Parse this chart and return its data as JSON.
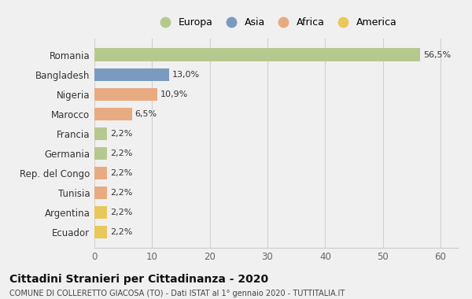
{
  "categories": [
    "Romania",
    "Bangladesh",
    "Nigeria",
    "Marocco",
    "Francia",
    "Germania",
    "Rep. del Congo",
    "Tunisia",
    "Argentina",
    "Ecuador"
  ],
  "values": [
    56.5,
    13.0,
    10.9,
    6.5,
    2.2,
    2.2,
    2.2,
    2.2,
    2.2,
    2.2
  ],
  "labels": [
    "56,5%",
    "13,0%",
    "10,9%",
    "6,5%",
    "2,2%",
    "2,2%",
    "2,2%",
    "2,2%",
    "2,2%",
    "2,2%"
  ],
  "colors": [
    "#b5c98e",
    "#7a9abf",
    "#e8aa80",
    "#e8aa80",
    "#b5c98e",
    "#b5c98e",
    "#e8aa80",
    "#e8aa80",
    "#e8c85a",
    "#e8c85a"
  ],
  "legend_labels": [
    "Europa",
    "Asia",
    "Africa",
    "America"
  ],
  "legend_colors": [
    "#b5c98e",
    "#7a9abf",
    "#e8aa80",
    "#e8c85a"
  ],
  "title": "Cittadini Stranieri per Cittadinanza - 2020",
  "subtitle": "COMUNE DI COLLERETTO GIACOSA (TO) - Dati ISTAT al 1° gennaio 2020 - TUTTITALIA.IT",
  "xlim": [
    0,
    63
  ],
  "xticks": [
    0,
    10,
    20,
    30,
    40,
    50,
    60
  ],
  "background_color": "#f0f0f0",
  "plot_bg_color": "#f0f0f0"
}
